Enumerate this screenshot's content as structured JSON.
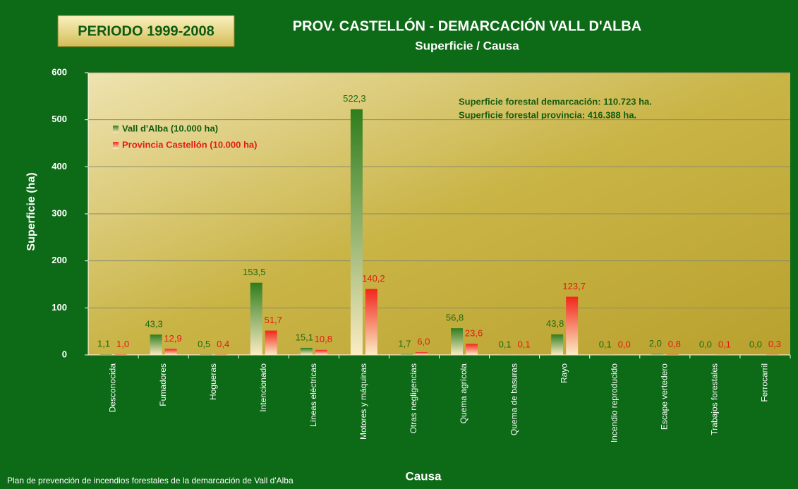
{
  "chart_data": {
    "type": "bar",
    "badge": "PERIODO 1999-2008",
    "title": "PROV. CASTELLÓN - DEMARCACIÓN VALL D'ALBA",
    "subtitle": "Superficie / Causa",
    "annotations": [
      "Superficie forestal demarcación: 110.723 ha.",
      "Superficie forestal provincia: 416.388 ha."
    ],
    "y_label": "Superficie (ha)",
    "x_label": "Causa",
    "footer": "Plan de prevención de incendios forestales de la demarcación de Vall d'Alba",
    "categories": [
      "Desconocida",
      "Fumadores",
      "Hogueras",
      "Intencionado",
      "Líneas eléctricas",
      "Motores y máquinas",
      "Otras negligencias",
      "Quema agrícola",
      "Quema de basuras",
      "Rayo",
      "Incendio reproducido",
      "Escape vertedero",
      "Trabajos forestales",
      "Ferrocarril"
    ],
    "series": [
      {
        "name": "Vall d'Alba (10.000 ha)",
        "color": "#2f7d1c",
        "values": [
          1.1,
          43.3,
          0.5,
          153.5,
          15.1,
          522.3,
          1.7,
          56.8,
          0.1,
          43.8,
          0.1,
          2.0,
          0.0,
          0.0
        ],
        "value_labels": [
          "1,1",
          "43,3",
          "0,5",
          "153,5",
          "15,1",
          "522,3",
          "1,7",
          "56,8",
          "0,1",
          "43,8",
          "0,1",
          "2,0",
          "0,0",
          "0,0"
        ]
      },
      {
        "name": "Provincia Castellón (10.000 ha)",
        "color": "#f2261b",
        "values": [
          1.0,
          12.9,
          0.4,
          51.7,
          10.8,
          140.2,
          6.0,
          23.6,
          0.1,
          123.7,
          0.0,
          0.8,
          0.1,
          0.3
        ],
        "value_labels": [
          "1,0",
          "12,9",
          "0,4",
          "51,7",
          "10,8",
          "140,2",
          "6,0",
          "23,6",
          "0,1",
          "123,7",
          "0,0",
          "0,8",
          "0,1",
          "0,3"
        ]
      }
    ],
    "ylim": [
      0,
      600
    ],
    "yticks": [
      0,
      100,
      200,
      300,
      400,
      500,
      600
    ],
    "grid": true
  }
}
